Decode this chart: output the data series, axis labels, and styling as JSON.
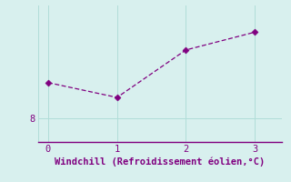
{
  "x": [
    0,
    1,
    2,
    3
  ],
  "y": [
    9.2,
    8.7,
    10.3,
    10.9
  ],
  "xlabel": "Windchill (Refroidissement éolien,°C)",
  "xlim": [
    -0.15,
    3.4
  ],
  "ylim": [
    7.2,
    11.8
  ],
  "line_color": "#800080",
  "marker_color": "#800080",
  "bg_color": "#d8f0ee",
  "axis_color": "#800080",
  "grid_color": "#b0ddd8",
  "xticks": [
    0,
    1,
    2,
    3
  ],
  "yticks": [
    8
  ],
  "ytick_labels": [
    "8"
  ],
  "xlabel_fontsize": 7.5,
  "tick_fontsize": 7.5,
  "marker_size": 3.5,
  "line_width": 0.9
}
